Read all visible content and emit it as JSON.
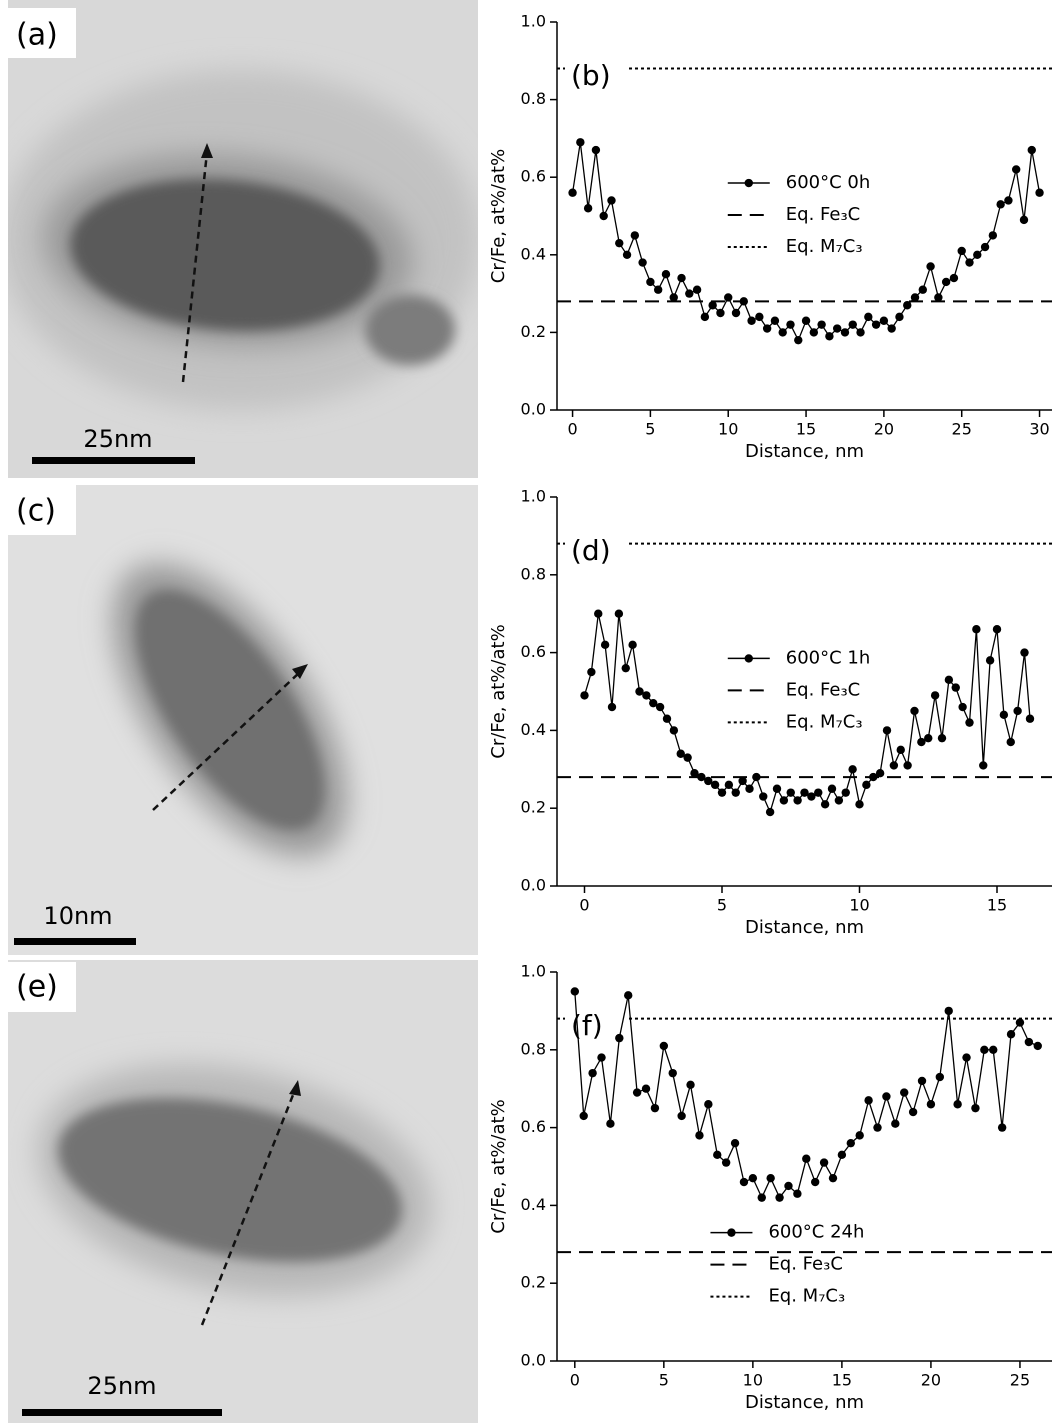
{
  "panels": [
    {
      "label": "(a)",
      "scale_bar": "25nm"
    },
    {
      "label": "(c)",
      "scale_bar": "10nm"
    },
    {
      "label": "(e)",
      "scale_bar": "25nm"
    }
  ],
  "chart_data": [
    {
      "type": "line",
      "panel_label": "(b)",
      "xlabel": "Distance, nm",
      "ylabel": "Cr/Fe, at%/at%",
      "xlim": [
        -1,
        30.8
      ],
      "ylim": [
        0,
        1.0
      ],
      "xticks": [
        0,
        5,
        10,
        15,
        20,
        25,
        30
      ],
      "yticks": [
        {
          "value": 0,
          "label": "0.0"
        },
        0.2,
        0.4,
        0.6,
        0.8,
        {
          "value": 1.0,
          "label": "1.0"
        }
      ],
      "legend": "center right",
      "series": [
        {
          "name": "600°C 0h",
          "color": "#000000",
          "x": [
            0,
            0.5,
            1,
            1.5,
            2,
            2.5,
            3,
            3.5,
            4,
            4.5,
            5,
            5.5,
            6,
            6.5,
            7,
            7.5,
            8,
            8.5,
            9,
            9.5,
            10,
            10.5,
            11,
            11.5,
            12,
            12.5,
            13,
            13.5,
            14,
            14.5,
            15,
            15.5,
            16,
            16.5,
            17,
            17.5,
            18,
            18.5,
            19,
            19.5,
            20,
            20.5,
            21,
            21.5,
            22,
            22.5,
            23,
            23.5,
            24,
            24.5,
            25,
            25.5,
            26,
            26.5,
            27,
            27.5,
            28,
            28.5,
            29,
            29.5,
            30
          ],
          "values": [
            0.56,
            0.69,
            0.52,
            0.67,
            0.5,
            0.54,
            0.43,
            0.4,
            0.45,
            0.38,
            0.33,
            0.31,
            0.35,
            0.29,
            0.34,
            0.3,
            0.31,
            0.24,
            0.27,
            0.25,
            0.29,
            0.25,
            0.28,
            0.23,
            0.24,
            0.21,
            0.23,
            0.2,
            0.22,
            0.18,
            0.23,
            0.2,
            0.22,
            0.19,
            0.21,
            0.2,
            0.22,
            0.2,
            0.24,
            0.22,
            0.23,
            0.21,
            0.24,
            0.27,
            0.29,
            0.31,
            0.37,
            0.29,
            0.33,
            0.34,
            0.41,
            0.38,
            0.4,
            0.42,
            0.45,
            0.53,
            0.54,
            0.62,
            0.49,
            0.67,
            0.56
          ]
        }
      ],
      "hlines": [
        {
          "name": "Eq. Fe₃C",
          "value": 0.28,
          "dash": "dashed"
        },
        {
          "name": "Eq. M₇C₃",
          "value": 0.88,
          "dash": "dotted"
        }
      ]
    },
    {
      "type": "line",
      "panel_label": "(d)",
      "xlabel": "Distance, nm",
      "ylabel": "Cr/Fe, at%/at%",
      "xlim": [
        -1,
        17
      ],
      "ylim": [
        0,
        1.0
      ],
      "xticks": [
        0,
        5,
        10,
        15
      ],
      "yticks": [
        {
          "value": 0,
          "label": "0.0"
        },
        0.2,
        0.4,
        0.6,
        0.8,
        {
          "value": 1.0,
          "label": "1.0"
        }
      ],
      "legend": "center right",
      "series": [
        {
          "name": "600°C 1h",
          "color": "#000000",
          "x": [
            0,
            0.25,
            0.5,
            0.75,
            1,
            1.25,
            1.5,
            1.75,
            2,
            2.25,
            2.5,
            2.75,
            3,
            3.25,
            3.5,
            3.75,
            4,
            4.25,
            4.5,
            4.75,
            5,
            5.25,
            5.5,
            5.75,
            6,
            6.25,
            6.5,
            6.75,
            7,
            7.25,
            7.5,
            7.75,
            8,
            8.25,
            8.5,
            8.75,
            9,
            9.25,
            9.5,
            9.75,
            10,
            10.25,
            10.5,
            10.75,
            11,
            11.25,
            11.5,
            11.75,
            12,
            12.25,
            12.5,
            12.75,
            13,
            13.25,
            13.5,
            13.75,
            14,
            14.25,
            14.5,
            14.75,
            15,
            15.25,
            15.5,
            15.75,
            16,
            16.2
          ],
          "values": [
            0.49,
            0.55,
            0.7,
            0.62,
            0.46,
            0.7,
            0.56,
            0.62,
            0.5,
            0.49,
            0.47,
            0.46,
            0.43,
            0.4,
            0.34,
            0.33,
            0.29,
            0.28,
            0.27,
            0.26,
            0.24,
            0.26,
            0.24,
            0.27,
            0.25,
            0.28,
            0.23,
            0.19,
            0.25,
            0.22,
            0.24,
            0.22,
            0.24,
            0.23,
            0.24,
            0.21,
            0.25,
            0.22,
            0.24,
            0.3,
            0.21,
            0.26,
            0.28,
            0.29,
            0.4,
            0.31,
            0.35,
            0.31,
            0.45,
            0.37,
            0.38,
            0.49,
            0.38,
            0.53,
            0.51,
            0.46,
            0.42,
            0.66,
            0.31,
            0.58,
            0.66,
            0.44,
            0.37,
            0.45,
            0.6,
            0.43
          ]
        }
      ],
      "hlines": [
        {
          "name": "Eq. Fe₃C",
          "value": 0.28,
          "dash": "dashed"
        },
        {
          "name": "Eq. M₇C₃",
          "value": 0.88,
          "dash": "dotted"
        }
      ]
    },
    {
      "type": "line",
      "panel_label": "(f)",
      "xlabel": "Distance, nm",
      "ylabel": "Cr/Fe, at%/at%",
      "xlim": [
        -1,
        26.8
      ],
      "ylim": [
        0,
        1.0
      ],
      "xticks": [
        0,
        5,
        10,
        15,
        20,
        25
      ],
      "yticks": [
        {
          "value": 0,
          "label": "0.0"
        },
        0.2,
        0.4,
        0.6,
        0.8,
        {
          "value": 1.0,
          "label": "1.0"
        }
      ],
      "legend": "lower center",
      "series": [
        {
          "name": "600°C 24h",
          "color": "#000000",
          "x": [
            0,
            0.5,
            1,
            1.5,
            2,
            2.5,
            3,
            3.5,
            4,
            4.5,
            5,
            5.5,
            6,
            6.5,
            7,
            7.5,
            8,
            8.5,
            9,
            9.5,
            10,
            10.5,
            11,
            11.5,
            12,
            12.5,
            13,
            13.5,
            14,
            14.5,
            15,
            15.5,
            16,
            16.5,
            17,
            17.5,
            18,
            18.5,
            19,
            19.5,
            20,
            20.5,
            21,
            21.5,
            22,
            22.5,
            23,
            23.5,
            24,
            24.5,
            25,
            25.5,
            26
          ],
          "values": [
            0.95,
            0.63,
            0.74,
            0.78,
            0.61,
            0.83,
            0.94,
            0.69,
            0.7,
            0.65,
            0.81,
            0.74,
            0.63,
            0.71,
            0.58,
            0.66,
            0.53,
            0.51,
            0.56,
            0.46,
            0.47,
            0.42,
            0.47,
            0.42,
            0.45,
            0.43,
            0.52,
            0.46,
            0.51,
            0.47,
            0.53,
            0.56,
            0.58,
            0.67,
            0.6,
            0.68,
            0.61,
            0.69,
            0.64,
            0.72,
            0.66,
            0.73,
            0.9,
            0.66,
            0.78,
            0.65,
            0.8,
            0.8,
            0.6,
            0.84,
            0.87,
            0.82,
            0.81
          ]
        }
      ],
      "hlines": [
        {
          "name": "Eq. Fe₃C",
          "value": 0.28,
          "dash": "dashed"
        },
        {
          "name": "Eq. M₇C₃",
          "value": 0.88,
          "dash": "dotted"
        }
      ]
    }
  ]
}
